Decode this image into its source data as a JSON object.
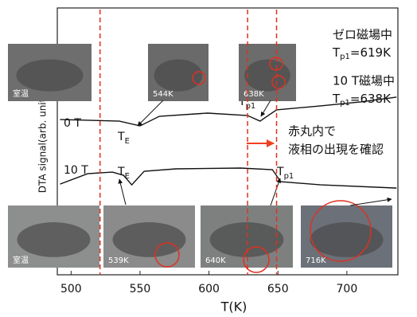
{
  "chart_data": {
    "type": "line",
    "xlabel": "T(K)",
    "ylabel": "DTA signal(arb. units)",
    "xlim": [
      490,
      737
    ],
    "ylim": [
      0,
      100
    ],
    "xticks": [
      500,
      550,
      600,
      650,
      700
    ],
    "series": [
      {
        "name": "0 T",
        "color": "#111111",
        "x": [
          492,
          535,
          550,
          564,
          599,
          628,
          637,
          649,
          681,
          710,
          736
        ],
        "values": [
          58.2,
          57.6,
          55.8,
          59.4,
          60.6,
          59.7,
          57.6,
          61.8,
          63.3,
          64.8,
          66.6
        ]
      },
      {
        "name": "10 T",
        "color": "#111111",
        "x": [
          492,
          512,
          530,
          538,
          544,
          553,
          576,
          623,
          646,
          652,
          681,
          736
        ],
        "values": [
          34.0,
          37.9,
          38.5,
          37.3,
          33.7,
          38.8,
          39.7,
          40.0,
          39.4,
          34.9,
          33.7,
          32.5
        ]
      }
    ],
    "markers": {
      "color": "#e03020",
      "values": [
        521,
        628,
        649
      ]
    },
    "point_labels": [
      {
        "base": "T",
        "sub": "E"
      },
      {
        "base": "T",
        "sub": "p1"
      },
      {
        "base": "T",
        "sub": "E"
      },
      {
        "base": "T",
        "sub": "p1"
      }
    ],
    "annotations": [
      {
        "text": "ゼロ磁場中"
      },
      {
        "base": "T",
        "sub": "p1",
        "rest": "=619K"
      },
      {
        "text": "10 T磁場中"
      },
      {
        "base": "T",
        "sub": "p1",
        "rest": "=638K"
      },
      {
        "text": "赤丸内で"
      },
      {
        "text": "液相の出現を確認"
      }
    ],
    "photos": [
      "室温",
      "544K",
      "638K",
      "室温",
      "539K",
      "640K",
      "716K"
    ]
  }
}
